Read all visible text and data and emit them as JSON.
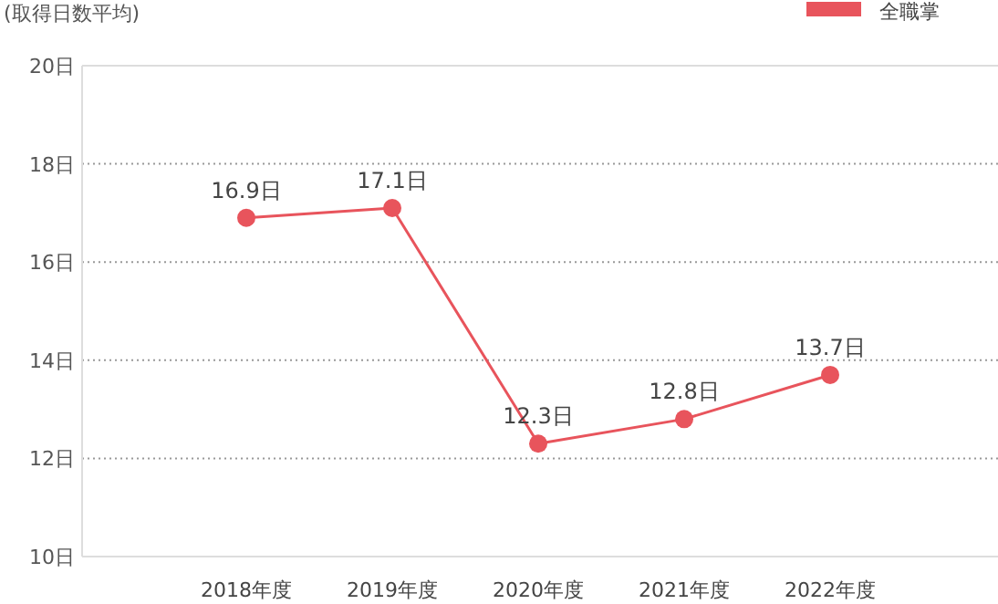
{
  "chart_data": {
    "type": "line",
    "ylabel": "(取得日数平均)",
    "categories": [
      "2018年度",
      "2019年度",
      "2020年度",
      "2021年度",
      "2022年度"
    ],
    "series": [
      {
        "name": "全職掌",
        "color": "#e8545c",
        "values": [
          16.9,
          17.1,
          12.3,
          12.8,
          13.7
        ]
      }
    ],
    "value_labels": [
      "16.9日",
      "17.1日",
      "12.3日",
      "12.8日",
      "13.7日"
    ],
    "ylim": [
      10,
      20
    ],
    "yticks": [
      {
        "value": 10,
        "label": "10日"
      },
      {
        "value": 12,
        "label": "12日"
      },
      {
        "value": 14,
        "label": "14日"
      },
      {
        "value": 16,
        "label": "16日"
      },
      {
        "value": 18,
        "label": "18日"
      },
      {
        "value": 20,
        "label": "20日"
      }
    ],
    "grid": "y",
    "legend": "top right",
    "marker": "circle",
    "line_style": "solid"
  }
}
